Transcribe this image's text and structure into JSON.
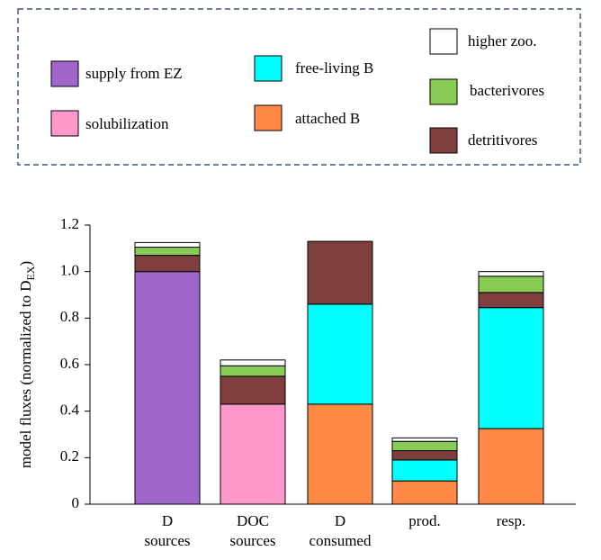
{
  "chart_data": {
    "type": "stacked-bar",
    "y_label": {
      "text": "model fluxes (normalized to D",
      "sub": "EX",
      "tail": ")"
    },
    "categories": [
      "D sources",
      "DOC sources",
      "D consumed",
      "prod.",
      "resp."
    ],
    "ylim": [
      0,
      1.2
    ],
    "yticks": [
      0,
      0.2,
      0.4,
      0.6,
      0.8,
      {
        "value": 1,
        "label": "1.0"
      },
      1.2
    ],
    "series": [
      {
        "name": "supply from EZ",
        "color": "#a066cc",
        "values": [
          1.0,
          null,
          null,
          null,
          null
        ]
      },
      {
        "name": "solubilization",
        "color": "#ff99cc",
        "values": [
          null,
          0.43,
          null,
          null,
          null
        ]
      },
      {
        "name": "attached B",
        "color": "#ff8844",
        "values": [
          null,
          null,
          0.43,
          0.1,
          0.325
        ]
      },
      {
        "name": "free-living B",
        "color": "#00ffff",
        "values": [
          null,
          null,
          0.43,
          0.09,
          0.52
        ]
      },
      {
        "name": "detritivores",
        "color": "#7f3f3f",
        "values": [
          0.07,
          0.12,
          0.27,
          0.04,
          0.065
        ]
      },
      {
        "name": "bacterivores",
        "color": "#88cc55",
        "values": [
          0.035,
          0.045,
          null,
          0.04,
          0.07
        ]
      },
      {
        "name": "higher zoo.",
        "color": "#ffffff",
        "values": [
          0.02,
          0.025,
          null,
          0.015,
          0.02
        ]
      }
    ]
  }
}
